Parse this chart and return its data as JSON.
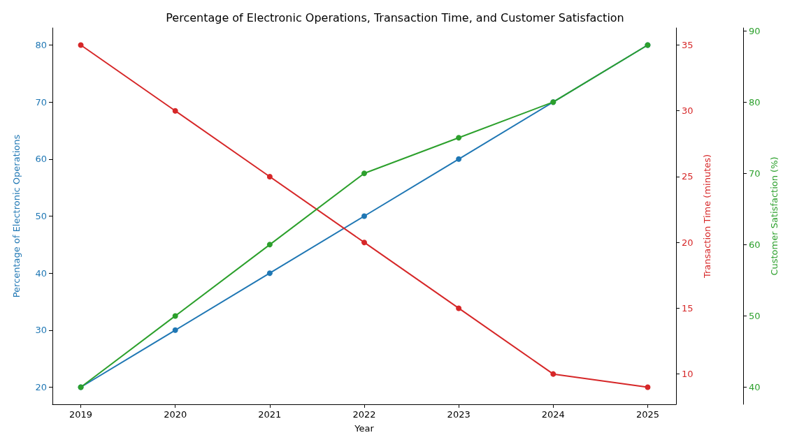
{
  "chart_data": {
    "type": "line",
    "title": "Percentage of Electronic Operations, Transaction Time, and Customer Satisfaction",
    "xlabel": "Year",
    "ylabel": "Percentage of Electronic Operations",
    "y2label": "Transaction Time (minutes)",
    "y3label": "Customer Satisfaction (%)",
    "x": [
      2019,
      2020,
      2021,
      2022,
      2023,
      2024,
      2025
    ],
    "xlim": [
      2018.7,
      2025.3
    ],
    "xticks": [
      2019,
      2020,
      2021,
      2022,
      2023,
      2024,
      2025
    ],
    "ylim": [
      17,
      83
    ],
    "yticks": [
      20,
      30,
      40,
      50,
      60,
      70,
      80
    ],
    "y2lim": [
      7.7,
      36.3
    ],
    "y2ticks": [
      10,
      15,
      20,
      25,
      30,
      35
    ],
    "y3lim": [
      37.6,
      90.4
    ],
    "y3ticks": [
      40,
      50,
      60,
      70,
      80,
      90
    ],
    "series": [
      {
        "color": "#1f77b4",
        "values": [
          20,
          30,
          40,
          50,
          60,
          70,
          80
        ]
      },
      {
        "color": "#d62728",
        "axis": "y2",
        "values": [
          35,
          30,
          25,
          20,
          15,
          10,
          9
        ]
      },
      {
        "color": "#2ca02c",
        "axis": "y3",
        "values": [
          40,
          50,
          60,
          70,
          75,
          80,
          88
        ]
      }
    ],
    "marker": "circle",
    "grid": false
  }
}
